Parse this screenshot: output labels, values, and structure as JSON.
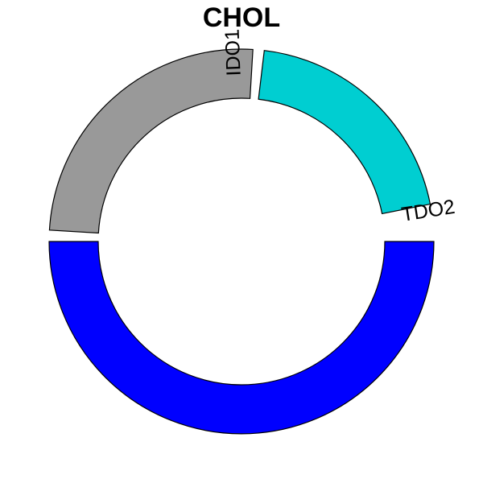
{
  "chart_data": {
    "type": "pie",
    "title": "CHOL",
    "slices": [
      {
        "label": "TDO2",
        "value": 0.5,
        "color": "#0000ff"
      },
      {
        "label": "",
        "value": 0.25,
        "color": "#999999"
      },
      {
        "label": "IDO1",
        "value": 0.2,
        "color": "#00ced1"
      }
    ],
    "gap": 0.05,
    "donut": true,
    "legend": "none"
  }
}
